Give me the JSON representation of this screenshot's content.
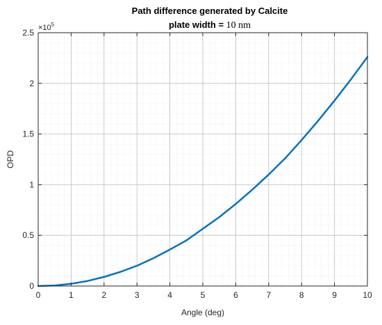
{
  "chart_data": {
    "type": "line",
    "title_line1": "Path difference generated by Calcite",
    "title_line2_prefix": "plate width = ",
    "title_line2_value": "10 nm",
    "xlabel": "Angle (deg)",
    "ylabel": "OPD",
    "y_exponent_base": "×10",
    "y_exponent_power": "5",
    "xlim": [
      0,
      10
    ],
    "ylim": [
      0,
      2.5
    ],
    "x_ticks": [
      0,
      1,
      2,
      3,
      4,
      5,
      6,
      7,
      8,
      9,
      10
    ],
    "x_tick_labels": [
      "0",
      "1",
      "2",
      "3",
      "4",
      "5",
      "6",
      "7",
      "8",
      "9",
      "10"
    ],
    "y_ticks": [
      0,
      0.5,
      1,
      1.5,
      2,
      2.5
    ],
    "y_tick_labels": [
      "0",
      "0.5",
      "1",
      "1.5",
      "2",
      "2.5"
    ],
    "grid": true,
    "minor_grid": true,
    "line_color": "#0072BD",
    "series": [
      {
        "x": [
          0,
          0.5,
          1,
          1.5,
          2,
          2.5,
          3,
          3.5,
          4,
          4.5,
          5,
          5.5,
          6,
          6.5,
          7,
          7.5,
          8,
          8.5,
          9,
          9.5,
          10
        ],
        "values": [
          0,
          0.005,
          0.022,
          0.05,
          0.09,
          0.14,
          0.2,
          0.275,
          0.36,
          0.45,
          0.565,
          0.68,
          0.81,
          0.95,
          1.1,
          1.26,
          1.44,
          1.63,
          1.83,
          2.04,
          2.26
        ]
      }
    ]
  }
}
